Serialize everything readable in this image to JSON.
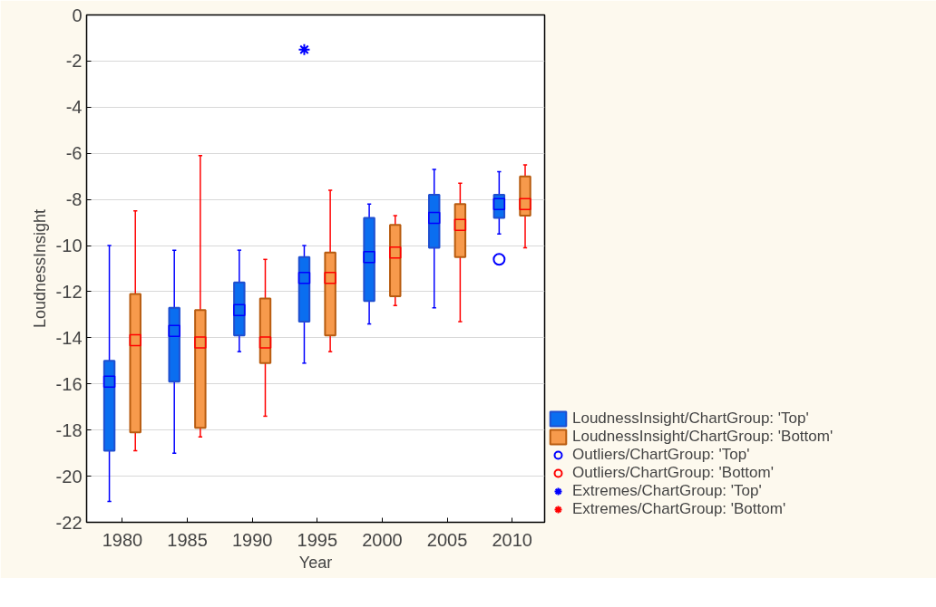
{
  "chart_data": {
    "type": "box",
    "xlabel": "Year",
    "ylabel": "LoudnessInsight",
    "categories": [
      "1980",
      "1985",
      "1990",
      "1995",
      "2000",
      "2005",
      "2010"
    ],
    "ylim": [
      -22,
      0
    ],
    "yticks": [
      0,
      -2,
      -4,
      -6,
      -8,
      -10,
      -12,
      -14,
      -16,
      -18,
      -20,
      -22
    ],
    "grid": "y",
    "legend": "bottom right",
    "series": [
      {
        "name": "LoudnessInsight/ChartGroup: 'Top'",
        "color": "#0a6ef0",
        "boxes": [
          {
            "low": -21.1,
            "q1": -18.9,
            "median": -15.9,
            "q3": -15.0,
            "high": -10.0
          },
          {
            "low": -19.0,
            "q1": -15.9,
            "median": -13.7,
            "q3": -12.7,
            "high": -10.2
          },
          {
            "low": -14.6,
            "q1": -13.9,
            "median": -12.8,
            "q3": -11.6,
            "high": -10.2
          },
          {
            "low": -15.1,
            "q1": -13.3,
            "median": -11.4,
            "q3": -10.5,
            "high": -10.0
          },
          {
            "low": -13.4,
            "q1": -12.4,
            "median": -10.5,
            "q3": -8.8,
            "high": -8.2
          },
          {
            "low": -12.7,
            "q1": -10.1,
            "median": -8.8,
            "q3": -7.8,
            "high": -6.7
          },
          {
            "low": -9.5,
            "q1": -8.8,
            "median": -8.2,
            "q3": -7.8,
            "high": -6.8
          }
        ]
      },
      {
        "name": "LoudnessInsight/ChartGroup: 'Bottom'",
        "color": "#f79a4c",
        "boxes": [
          {
            "low": -18.9,
            "q1": -18.1,
            "median": -14.1,
            "q3": -12.1,
            "high": -8.5
          },
          {
            "low": -18.3,
            "q1": -17.9,
            "median": -14.2,
            "q3": -12.8,
            "high": -6.1
          },
          {
            "low": -17.4,
            "q1": -15.1,
            "median": -14.2,
            "q3": -12.3,
            "high": -10.6
          },
          {
            "low": -14.6,
            "q1": -13.9,
            "median": -11.4,
            "q3": -10.3,
            "high": -7.6
          },
          {
            "low": -12.6,
            "q1": -12.2,
            "median": -10.3,
            "q3": -9.1,
            "high": -8.7
          },
          {
            "low": -13.3,
            "q1": -10.5,
            "median": -9.1,
            "q3": -8.2,
            "high": -7.3
          },
          {
            "low": -10.1,
            "q1": -8.7,
            "median": -8.2,
            "q3": -7.0,
            "high": -6.5
          }
        ]
      },
      {
        "name": "Outliers/ChartGroup: 'Top'",
        "type": "scatter",
        "marker": "circle",
        "color": "#0000ff",
        "values": [
          null,
          null,
          null,
          null,
          null,
          null,
          -10.6
        ]
      },
      {
        "name": "Outliers/ChartGroup: 'Bottom'",
        "type": "scatter",
        "marker": "circle",
        "color": "#ff0000",
        "values": [
          null,
          null,
          null,
          null,
          null,
          null,
          null
        ]
      },
      {
        "name": "Extremes/ChartGroup: 'Top'",
        "type": "scatter",
        "marker": "cross",
        "color": "#0000ff",
        "values": [
          null,
          null,
          null,
          -1.5,
          null,
          null,
          null
        ]
      },
      {
        "name": "Extremes/ChartGroup: 'Bottom'",
        "type": "scatter",
        "marker": "cross",
        "color": "#ff0000",
        "values": [
          null,
          null,
          null,
          null,
          null,
          null,
          null
        ]
      }
    ]
  }
}
